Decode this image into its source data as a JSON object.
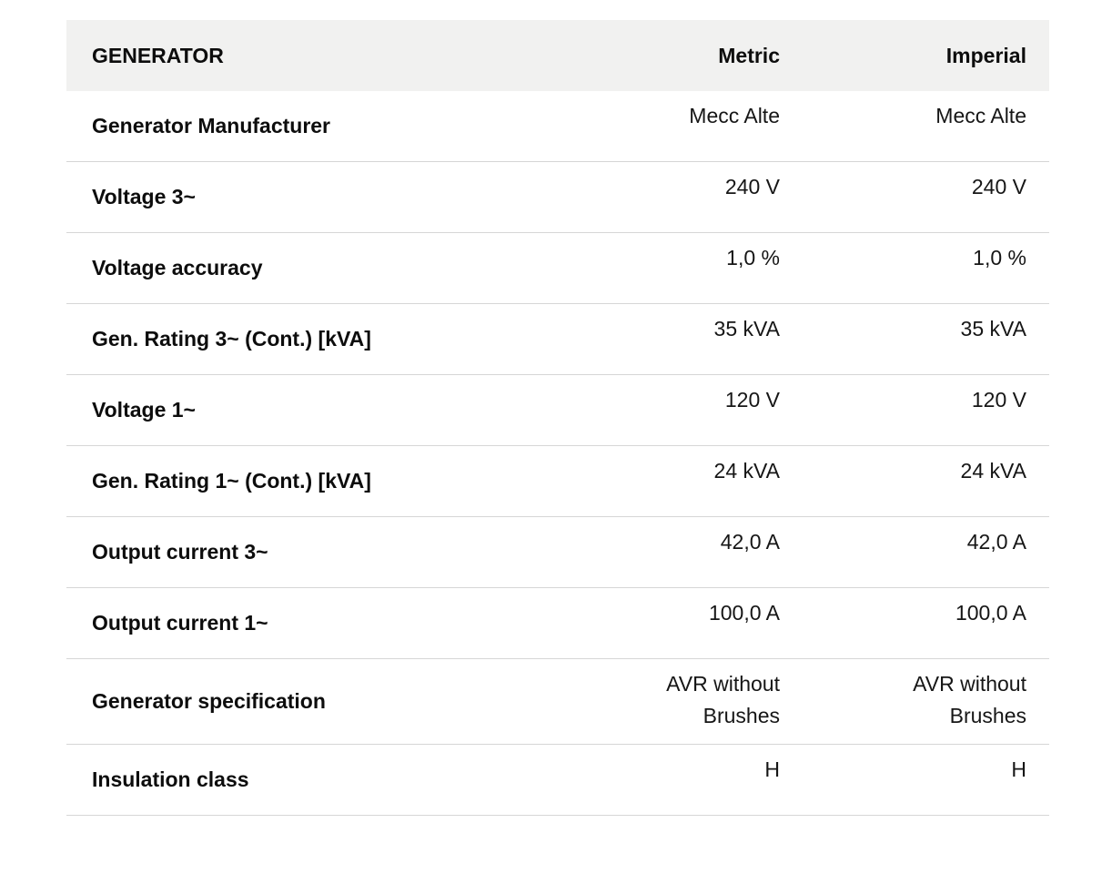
{
  "table": {
    "name": "generator-specifications",
    "header": {
      "section": "GENERATOR",
      "metric": "Metric",
      "imperial": "Imperial"
    },
    "rows": [
      {
        "label": "Generator Manufacturer",
        "metric": "Mecc Alte",
        "imperial": "Mecc Alte"
      },
      {
        "label": "Voltage 3~",
        "metric": "240 V",
        "imperial": "240 V"
      },
      {
        "label": "Voltage accuracy",
        "metric": "1,0 %",
        "imperial": "1,0 %"
      },
      {
        "label": "Gen. Rating 3~ (Cont.) [kVA]",
        "metric": "35 kVA",
        "imperial": "35 kVA"
      },
      {
        "label": "Voltage 1~",
        "metric": "120 V",
        "imperial": "120 V"
      },
      {
        "label": "Gen. Rating 1~ (Cont.) [kVA]",
        "metric": "24 kVA",
        "imperial": "24 kVA"
      },
      {
        "label": "Output current 3~",
        "metric": "42,0 A",
        "imperial": "42,0 A"
      },
      {
        "label": "Output current 1~",
        "metric": "100,0 A",
        "imperial": "100,0 A"
      },
      {
        "label": "Generator specification",
        "metric": "AVR without\nBrushes",
        "imperial": "AVR without\nBrushes"
      },
      {
        "label": "Insulation class",
        "metric": "H",
        "imperial": "H"
      }
    ],
    "colors": {
      "header_background": "#f1f1f0",
      "row_divider": "#d6d6d6",
      "label_text": "#0d0d0d",
      "value_text": "#161616",
      "page_background": "#ffffff"
    }
  }
}
